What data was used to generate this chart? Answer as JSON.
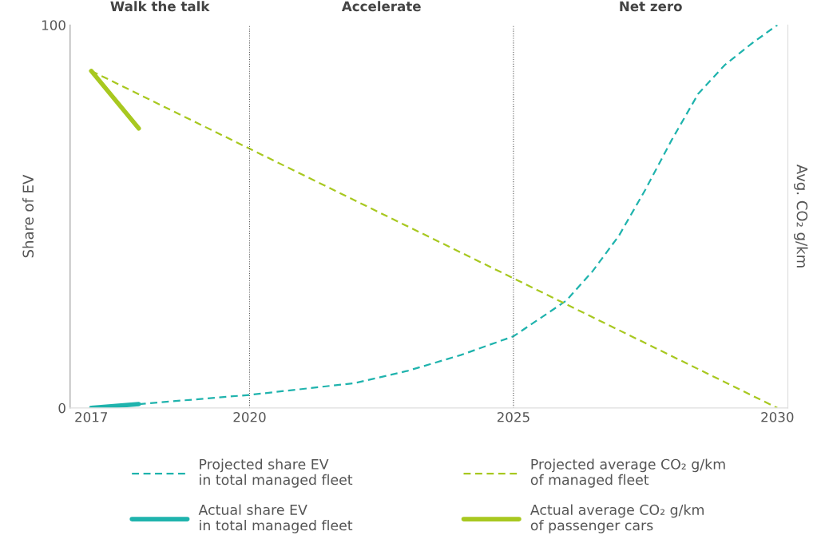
{
  "chart_data": {
    "type": "line",
    "ylabel": "Share of EV",
    "y2label": "Avg. CO₂ g/km",
    "xlim": [
      2016.6,
      2030.2
    ],
    "xticks": [
      2017,
      2020,
      2025,
      2030
    ],
    "ylim": [
      0,
      100
    ],
    "yticks": [
      0,
      100
    ],
    "grid": false,
    "legend": "bottom",
    "series": [
      {
        "name": "Projected share EV\nin total managed fleet",
        "color": "#1fb3ad",
        "line_style": "dashed",
        "x": [
          2017.9,
          2020,
          2022,
          2023,
          2024,
          2025,
          2026,
          2026.5,
          2027,
          2027.5,
          2028,
          2028.5,
          2029,
          2029.5,
          2030
        ],
        "values": [
          1,
          3.4,
          6.5,
          9.7,
          13.8,
          18.7,
          28,
          35.7,
          45,
          57,
          70,
          82,
          89.5,
          95,
          100
        ]
      },
      {
        "name": "Projected average CO₂ g/km\nof managed fleet",
        "color": "#a8c820",
        "line_style": "dashed",
        "x": [
          2017,
          2030
        ],
        "values": [
          88,
          0
        ]
      },
      {
        "name": "Actual share EV\nin total managed fleet",
        "color": "#1fb3ad",
        "line_style": "solid",
        "x": [
          2017,
          2017.9
        ],
        "values": [
          0,
          1
        ]
      },
      {
        "name": "Actual average CO₂ g/km\nof passenger cars",
        "color": "#a8c820",
        "line_style": "solid",
        "x": [
          2017,
          2017.9
        ],
        "values": [
          88,
          73
        ]
      }
    ],
    "ref_lines": [
      {
        "axis": "x",
        "value": 2020,
        "color": "#555555",
        "line_style": "dotted"
      },
      {
        "axis": "x",
        "value": 2025,
        "color": "#555555",
        "line_style": "dotted"
      }
    ],
    "annotations": [
      "Walk the talk",
      "Accelerate",
      "Net zero"
    ]
  }
}
